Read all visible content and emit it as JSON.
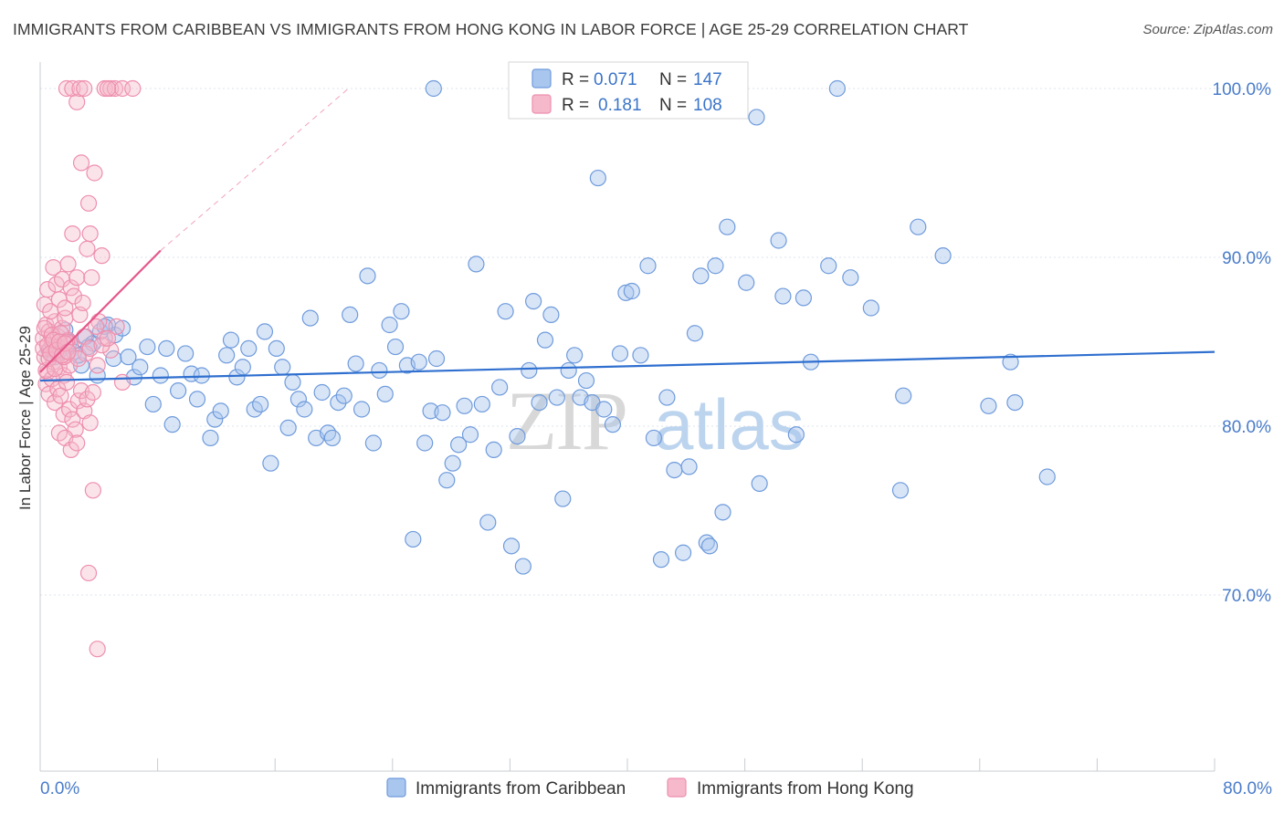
{
  "title": "IMMIGRANTS FROM CARIBBEAN VS IMMIGRANTS FROM HONG KONG IN LABOR FORCE | AGE 25-29 CORRELATION CHART",
  "source": "Source: ZipAtlas.com",
  "colors": {
    "blue_fill": "#a9c6ee",
    "blue_stroke": "#6f9bdc",
    "blue_line": "#2f6fcf",
    "pink_fill": "#f6b8cb",
    "pink_stroke": "#ee8fae",
    "pink_line": "#e4578a",
    "axis_text": "#4a7cc9",
    "grid": "#dde3ec"
  },
  "legend_box": {
    "series1": {
      "r_label": "R =",
      "r_value": "0.071",
      "n_label": "N =",
      "n_value": "147"
    },
    "series2": {
      "r_label": "R =",
      "r_value": "0.181",
      "n_label": "N =",
      "n_value": "108"
    }
  },
  "bottom_legend": {
    "series1": "Immigrants from Caribbean",
    "series2": "Immigrants from Hong Kong"
  },
  "watermark": {
    "zip": "ZIP",
    "atlas": "atlas"
  },
  "chart_data": {
    "type": "scatter",
    "title": "IMMIGRANTS FROM CARIBBEAN VS IMMIGRANTS FROM HONG KONG IN LABOR FORCE | AGE 25-29 CORRELATION CHART",
    "ylabel": "In Labor Force | Age 25-29",
    "xlabel": "",
    "xlim": [
      0,
      80
    ],
    "ylim": [
      60,
      101.5
    ],
    "x_tick_labels": [
      "0.0%",
      "80.0%"
    ],
    "y_ticks": [
      70,
      80,
      90,
      100
    ],
    "y_tick_labels": [
      "70.0%",
      "80.0%",
      "90.0%",
      "100.0%"
    ],
    "grid": true,
    "series": [
      {
        "name": "Immigrants from Caribbean",
        "r": 0.071,
        "n": 147,
        "trend": {
          "x": [
            0,
            80
          ],
          "y": [
            82.7,
            84.4
          ]
        },
        "points": [
          [
            0.6,
            84.5
          ],
          [
            0.9,
            84.8
          ],
          [
            1.2,
            84.3
          ],
          [
            1.5,
            84.6
          ],
          [
            2.0,
            85.0
          ],
          [
            2.3,
            84.4
          ],
          [
            2.8,
            83.6
          ],
          [
            3.1,
            85.3
          ],
          [
            3.6,
            84.9
          ],
          [
            4.1,
            85.6
          ],
          [
            4.6,
            86.0
          ],
          [
            5.1,
            85.4
          ],
          [
            5.6,
            85.8
          ],
          [
            1.0,
            84.1
          ],
          [
            1.7,
            85.7
          ],
          [
            2.6,
            84.2
          ],
          [
            3.3,
            84.7
          ],
          [
            3.9,
            83.0
          ],
          [
            4.4,
            85.9
          ],
          [
            5.0,
            84.0
          ],
          [
            6.0,
            84.1
          ],
          [
            6.4,
            82.9
          ],
          [
            6.8,
            83.5
          ],
          [
            7.3,
            84.7
          ],
          [
            7.7,
            81.3
          ],
          [
            8.2,
            83.0
          ],
          [
            8.6,
            84.6
          ],
          [
            9.0,
            80.1
          ],
          [
            9.4,
            82.1
          ],
          [
            9.9,
            84.3
          ],
          [
            10.3,
            83.1
          ],
          [
            10.7,
            81.6
          ],
          [
            11.0,
            83.0
          ],
          [
            11.6,
            79.3
          ],
          [
            11.9,
            80.4
          ],
          [
            12.3,
            80.9
          ],
          [
            12.7,
            84.2
          ],
          [
            13.0,
            85.1
          ],
          [
            13.4,
            82.9
          ],
          [
            13.8,
            83.5
          ],
          [
            14.2,
            84.6
          ],
          [
            14.6,
            81.0
          ],
          [
            15.0,
            81.3
          ],
          [
            15.3,
            85.6
          ],
          [
            15.7,
            77.8
          ],
          [
            16.1,
            84.6
          ],
          [
            16.5,
            83.5
          ],
          [
            16.9,
            79.9
          ],
          [
            17.2,
            82.6
          ],
          [
            17.6,
            81.6
          ],
          [
            18.0,
            81.0
          ],
          [
            18.4,
            86.4
          ],
          [
            18.8,
            79.3
          ],
          [
            19.2,
            82.0
          ],
          [
            19.6,
            79.6
          ],
          [
            19.9,
            79.3
          ],
          [
            20.3,
            81.4
          ],
          [
            20.7,
            81.8
          ],
          [
            21.1,
            86.6
          ],
          [
            21.5,
            83.7
          ],
          [
            21.9,
            81.0
          ],
          [
            22.3,
            88.9
          ],
          [
            22.7,
            79.0
          ],
          [
            23.1,
            83.3
          ],
          [
            23.5,
            81.9
          ],
          [
            23.8,
            86.0
          ],
          [
            24.2,
            84.7
          ],
          [
            24.6,
            86.8
          ],
          [
            25.0,
            83.6
          ],
          [
            25.4,
            73.3
          ],
          [
            25.8,
            83.8
          ],
          [
            26.2,
            79.0
          ],
          [
            26.6,
            80.9
          ],
          [
            27.0,
            84.0
          ],
          [
            27.4,
            80.8
          ],
          [
            27.7,
            76.8
          ],
          [
            28.1,
            77.8
          ],
          [
            28.5,
            78.9
          ],
          [
            28.9,
            81.2
          ],
          [
            29.3,
            79.5
          ],
          [
            29.7,
            89.6
          ],
          [
            30.1,
            81.3
          ],
          [
            30.5,
            74.3
          ],
          [
            30.9,
            78.6
          ],
          [
            31.3,
            82.3
          ],
          [
            31.7,
            86.8
          ],
          [
            32.1,
            72.9
          ],
          [
            32.5,
            79.4
          ],
          [
            32.9,
            71.7
          ],
          [
            33.3,
            83.3
          ],
          [
            33.6,
            87.4
          ],
          [
            34.0,
            81.4
          ],
          [
            34.4,
            85.1
          ],
          [
            34.8,
            86.6
          ],
          [
            35.2,
            81.7
          ],
          [
            35.6,
            75.7
          ],
          [
            36.0,
            83.3
          ],
          [
            36.4,
            84.2
          ],
          [
            36.8,
            81.7
          ],
          [
            37.2,
            82.7
          ],
          [
            37.6,
            81.4
          ],
          [
            38.0,
            94.7
          ],
          [
            38.4,
            81.0
          ],
          [
            39.0,
            80.1
          ],
          [
            39.5,
            84.3
          ],
          [
            39.9,
            87.9
          ],
          [
            40.3,
            88.0
          ],
          [
            40.9,
            84.2
          ],
          [
            41.4,
            89.5
          ],
          [
            41.8,
            79.3
          ],
          [
            42.3,
            72.1
          ],
          [
            42.7,
            81.7
          ],
          [
            43.2,
            77.4
          ],
          [
            43.8,
            72.5
          ],
          [
            44.2,
            77.6
          ],
          [
            44.6,
            85.5
          ],
          [
            45.0,
            88.9
          ],
          [
            45.4,
            73.1
          ],
          [
            45.6,
            72.9
          ],
          [
            46.0,
            89.5
          ],
          [
            46.5,
            74.9
          ],
          [
            46.8,
            91.8
          ],
          [
            48.1,
            88.5
          ],
          [
            49.0,
            76.6
          ],
          [
            50.3,
            91.0
          ],
          [
            50.6,
            87.7
          ],
          [
            51.5,
            79.5
          ],
          [
            52.0,
            87.6
          ],
          [
            52.5,
            83.8
          ],
          [
            53.7,
            89.5
          ],
          [
            55.2,
            88.8
          ],
          [
            56.6,
            87.0
          ],
          [
            58.6,
            76.2
          ],
          [
            58.8,
            81.8
          ],
          [
            59.8,
            91.8
          ],
          [
            61.5,
            90.1
          ],
          [
            64.6,
            81.2
          ],
          [
            66.1,
            83.8
          ],
          [
            66.4,
            81.4
          ],
          [
            68.6,
            77.0
          ],
          [
            26.8,
            100.0
          ],
          [
            54.3,
            100.0
          ],
          [
            48.8,
            98.3
          ]
        ]
      },
      {
        "name": "Immigrants from Hong Kong",
        "r": 0.181,
        "n": 108,
        "trend": {
          "x": [
            0,
            8.2
          ],
          "y": [
            83.2,
            90.4
          ]
        },
        "trend_extension": {
          "x": [
            8.2,
            21.0
          ],
          "y": [
            90.4,
            100.0
          ]
        },
        "points": [
          [
            0.2,
            85.2
          ],
          [
            0.3,
            84.1
          ],
          [
            0.4,
            86.0
          ],
          [
            0.5,
            83.2
          ],
          [
            0.6,
            85.6
          ],
          [
            0.7,
            84.6
          ],
          [
            0.8,
            85.0
          ],
          [
            0.9,
            83.8
          ],
          [
            1.0,
            86.2
          ],
          [
            1.1,
            84.4
          ],
          [
            1.2,
            85.3
          ],
          [
            1.3,
            83.5
          ],
          [
            1.4,
            84.8
          ],
          [
            1.5,
            85.8
          ],
          [
            1.6,
            83.0
          ],
          [
            1.7,
            86.4
          ],
          [
            1.8,
            84.2
          ],
          [
            1.9,
            85.1
          ],
          [
            2.0,
            83.6
          ],
          [
            2.1,
            84.9
          ],
          [
            0.3,
            87.2
          ],
          [
            0.5,
            88.1
          ],
          [
            0.7,
            86.8
          ],
          [
            0.9,
            89.4
          ],
          [
            1.1,
            88.4
          ],
          [
            1.3,
            87.5
          ],
          [
            1.5,
            88.7
          ],
          [
            1.7,
            87.0
          ],
          [
            1.9,
            89.6
          ],
          [
            2.1,
            88.2
          ],
          [
            2.3,
            87.7
          ],
          [
            2.5,
            88.8
          ],
          [
            2.7,
            86.6
          ],
          [
            0.4,
            82.5
          ],
          [
            0.6,
            81.9
          ],
          [
            0.8,
            82.8
          ],
          [
            1.0,
            81.4
          ],
          [
            1.2,
            82.2
          ],
          [
            1.4,
            81.8
          ],
          [
            1.6,
            80.7
          ],
          [
            1.8,
            82.6
          ],
          [
            2.0,
            81.0
          ],
          [
            2.2,
            80.4
          ],
          [
            2.4,
            79.8
          ],
          [
            2.6,
            81.5
          ],
          [
            2.8,
            82.1
          ],
          [
            3.0,
            80.9
          ],
          [
            3.2,
            81.6
          ],
          [
            3.4,
            80.2
          ],
          [
            3.6,
            82.0
          ],
          [
            1.3,
            79.6
          ],
          [
            1.7,
            79.3
          ],
          [
            2.1,
            78.6
          ],
          [
            2.5,
            79.0
          ],
          [
            2.2,
            91.4
          ],
          [
            3.4,
            91.4
          ],
          [
            3.3,
            93.2
          ],
          [
            2.8,
            95.6
          ],
          [
            3.7,
            95.0
          ],
          [
            3.2,
            90.5
          ],
          [
            4.2,
            90.1
          ],
          [
            2.9,
            87.3
          ],
          [
            3.5,
            88.8
          ],
          [
            4.0,
            86.2
          ],
          [
            4.4,
            85.2
          ],
          [
            4.8,
            84.5
          ],
          [
            5.2,
            85.9
          ],
          [
            5.6,
            82.6
          ],
          [
            3.9,
            83.6
          ],
          [
            3.1,
            84.3
          ],
          [
            0.2,
            84.6
          ],
          [
            0.3,
            85.8
          ],
          [
            0.4,
            83.3
          ],
          [
            0.6,
            84.0
          ],
          [
            0.8,
            85.4
          ],
          [
            1.0,
            83.4
          ],
          [
            1.2,
            84.7
          ],
          [
            1.4,
            85.5
          ],
          [
            1.6,
            84.1
          ],
          [
            1.8,
            85.0
          ],
          [
            3.6,
            76.2
          ],
          [
            3.3,
            71.3
          ],
          [
            3.9,
            66.8
          ],
          [
            1.8,
            100.0
          ],
          [
            2.2,
            100.0
          ],
          [
            2.5,
            99.2
          ],
          [
            2.7,
            100.0
          ],
          [
            3.0,
            100.0
          ],
          [
            4.4,
            100.0
          ],
          [
            4.8,
            100.0
          ],
          [
            5.1,
            100.0
          ],
          [
            5.6,
            100.0
          ],
          [
            6.3,
            100.0
          ],
          [
            4.6,
            100.0
          ],
          [
            2.6,
            84.0
          ],
          [
            3.0,
            85.3
          ],
          [
            3.4,
            84.6
          ],
          [
            3.8,
            85.9
          ],
          [
            4.2,
            84.8
          ],
          [
            4.6,
            85.2
          ],
          [
            0.5,
            84.8
          ],
          [
            0.7,
            84.3
          ],
          [
            0.9,
            85.1
          ],
          [
            1.1,
            84.5
          ],
          [
            1.3,
            85.0
          ],
          [
            1.5,
            84.2
          ],
          [
            1.7,
            84.9
          ],
          [
            1.9,
            84.4
          ]
        ]
      }
    ]
  }
}
